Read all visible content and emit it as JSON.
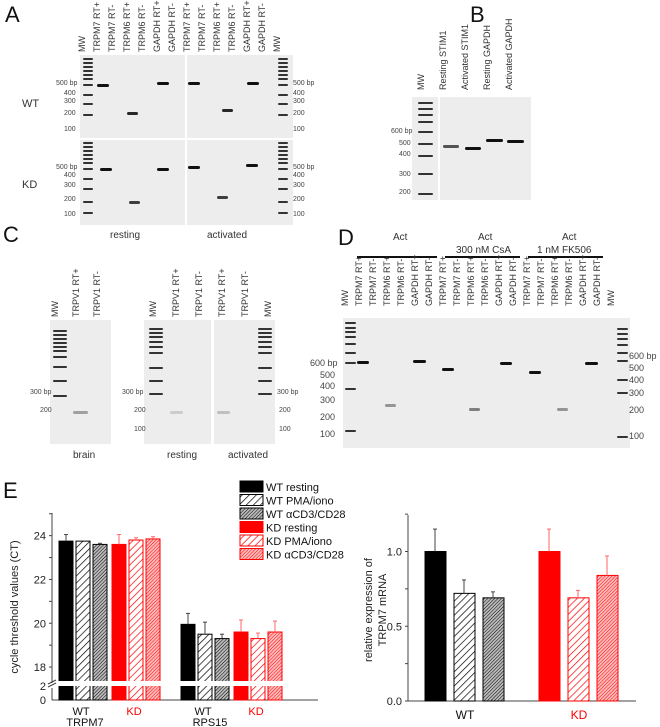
{
  "panels": {
    "A": {
      "letter": "A",
      "lanes": [
        "MW",
        "TRPM7 RT+",
        "TRPM7 RT-",
        "TRPM6 RT+",
        "TRPM6 RT-",
        "GAPDH RT+",
        "GAPDH RT-",
        "TRPM7 RT+",
        "TRPM7 RT-",
        "TRPM6 RT+",
        "TRPM6 RT-",
        "GAPDH RT+",
        "GAPDH RT-",
        "MW"
      ],
      "rows": [
        "WT",
        "KD"
      ],
      "sizes": [
        "500 bp",
        "400",
        "300",
        "200",
        "100"
      ],
      "conditions": [
        "resting",
        "activated"
      ]
    },
    "B": {
      "letter": "B",
      "lanes": [
        "MW",
        "Resting STIM1",
        "Activated STIM1",
        "Resting GAPDH",
        "Activated GAPDH"
      ],
      "sizes": [
        "600 bp",
        "500",
        "400",
        "300",
        "200"
      ]
    },
    "C": {
      "letter": "C",
      "lanes_brain": [
        "MW",
        "TRPV1 RT+",
        "TRPV1 RT-"
      ],
      "lanes_cells": [
        "MW",
        "TRPV1 RT+",
        "TRPV1 RT-",
        "TRPV1 RT+",
        "TRPV1 RT-",
        "MW"
      ],
      "sizes": [
        "300 bp",
        "200",
        "100"
      ],
      "conditions": [
        "brain",
        "resting",
        "activated"
      ]
    },
    "D": {
      "letter": "D",
      "groups": [
        "Act",
        "Act\n300 nM CsA",
        "Act\n1 nM FK506"
      ],
      "group1": "Act",
      "group2a": "Act",
      "group2b": "300 nM CsA",
      "group3a": "Act",
      "group3b": "1 nM FK506",
      "lanes": [
        "MW",
        "TRPM7 RT+",
        "TRPM7 RT-",
        "TRPM6 RT+",
        "TRPM6 RT-",
        "GAPDH RT+",
        "GAPDH RT-",
        "TRPM7 RT+",
        "TRPM7 RT-",
        "TRPM6 RT+",
        "TRPM6 RT-",
        "GAPDH RT+",
        "GAPDH RT-",
        "TRPM7 RT+",
        "TRPM7 RT-",
        "TRPM6 RT+",
        "TRPM6 RT-",
        "GAPDH RT+",
        "GAPDH RT-",
        "MW"
      ],
      "sizes": [
        "600 bp",
        "500",
        "400",
        "300",
        "200",
        "100"
      ]
    },
    "E": {
      "letter": "E"
    }
  },
  "legend": [
    {
      "label": "WT resting",
      "fill": "#000",
      "pattern": "solid"
    },
    {
      "label": "WT PMA/iono",
      "fill": "#000",
      "pattern": "hatch"
    },
    {
      "label": "WT αCD3/CD28",
      "fill": "#000",
      "pattern": "dense"
    },
    {
      "label": "KD resting",
      "fill": "#f00",
      "pattern": "solid"
    },
    {
      "label": "KD PMA/iono",
      "fill": "#f00",
      "pattern": "hatch"
    },
    {
      "label": "KD αCD3/CD28",
      "fill": "#f00",
      "pattern": "dense"
    }
  ],
  "chart_data": [
    {
      "type": "bar",
      "title": "",
      "ylabel": "cycle threshold values (C_T)",
      "ylim": [
        0,
        25
      ],
      "axis_break": [
        2,
        17.5
      ],
      "yticks": [
        "0",
        "2",
        "18",
        "20",
        "22",
        "24"
      ],
      "categories": [
        "TRPM7 WT",
        "TRPM7 KD",
        "RPS15 WT",
        "RPS15 KD"
      ],
      "group_labels": [
        "TRPM7",
        "RPS15"
      ],
      "sub_labels": [
        "WT",
        "KD",
        "WT",
        "KD"
      ],
      "series": [
        {
          "name": "resting",
          "values": [
            23.75,
            23.6,
            19.95,
            19.6
          ],
          "errors": [
            0.3,
            0.45,
            0.5,
            0.55
          ]
        },
        {
          "name": "PMA/iono",
          "values": [
            23.75,
            23.8,
            19.5,
            19.3
          ],
          "errors": [
            0.0,
            0.1,
            0.55,
            0.25
          ]
        },
        {
          "name": "aCD3/CD28",
          "values": [
            23.6,
            23.85,
            19.3,
            19.6
          ],
          "errors": [
            0.05,
            0.1,
            0.2,
            0.5
          ]
        }
      ]
    },
    {
      "type": "bar",
      "title": "",
      "ylabel": "relative expression of TRPM7 mRNA",
      "ylim": [
        0,
        1.25
      ],
      "yticks": [
        "0.0",
        "0.5",
        "1.0"
      ],
      "categories": [
        "WT",
        "KD"
      ],
      "series": [
        {
          "name": "resting",
          "values": [
            1.0,
            1.0
          ],
          "errors": [
            0.15,
            0.15
          ]
        },
        {
          "name": "PMA/iono",
          "values": [
            0.72,
            0.69
          ],
          "errors": [
            0.09,
            0.05
          ]
        },
        {
          "name": "aCD3/CD28",
          "values": [
            0.69,
            0.84
          ],
          "errors": [
            0.04,
            0.13
          ]
        }
      ]
    }
  ]
}
